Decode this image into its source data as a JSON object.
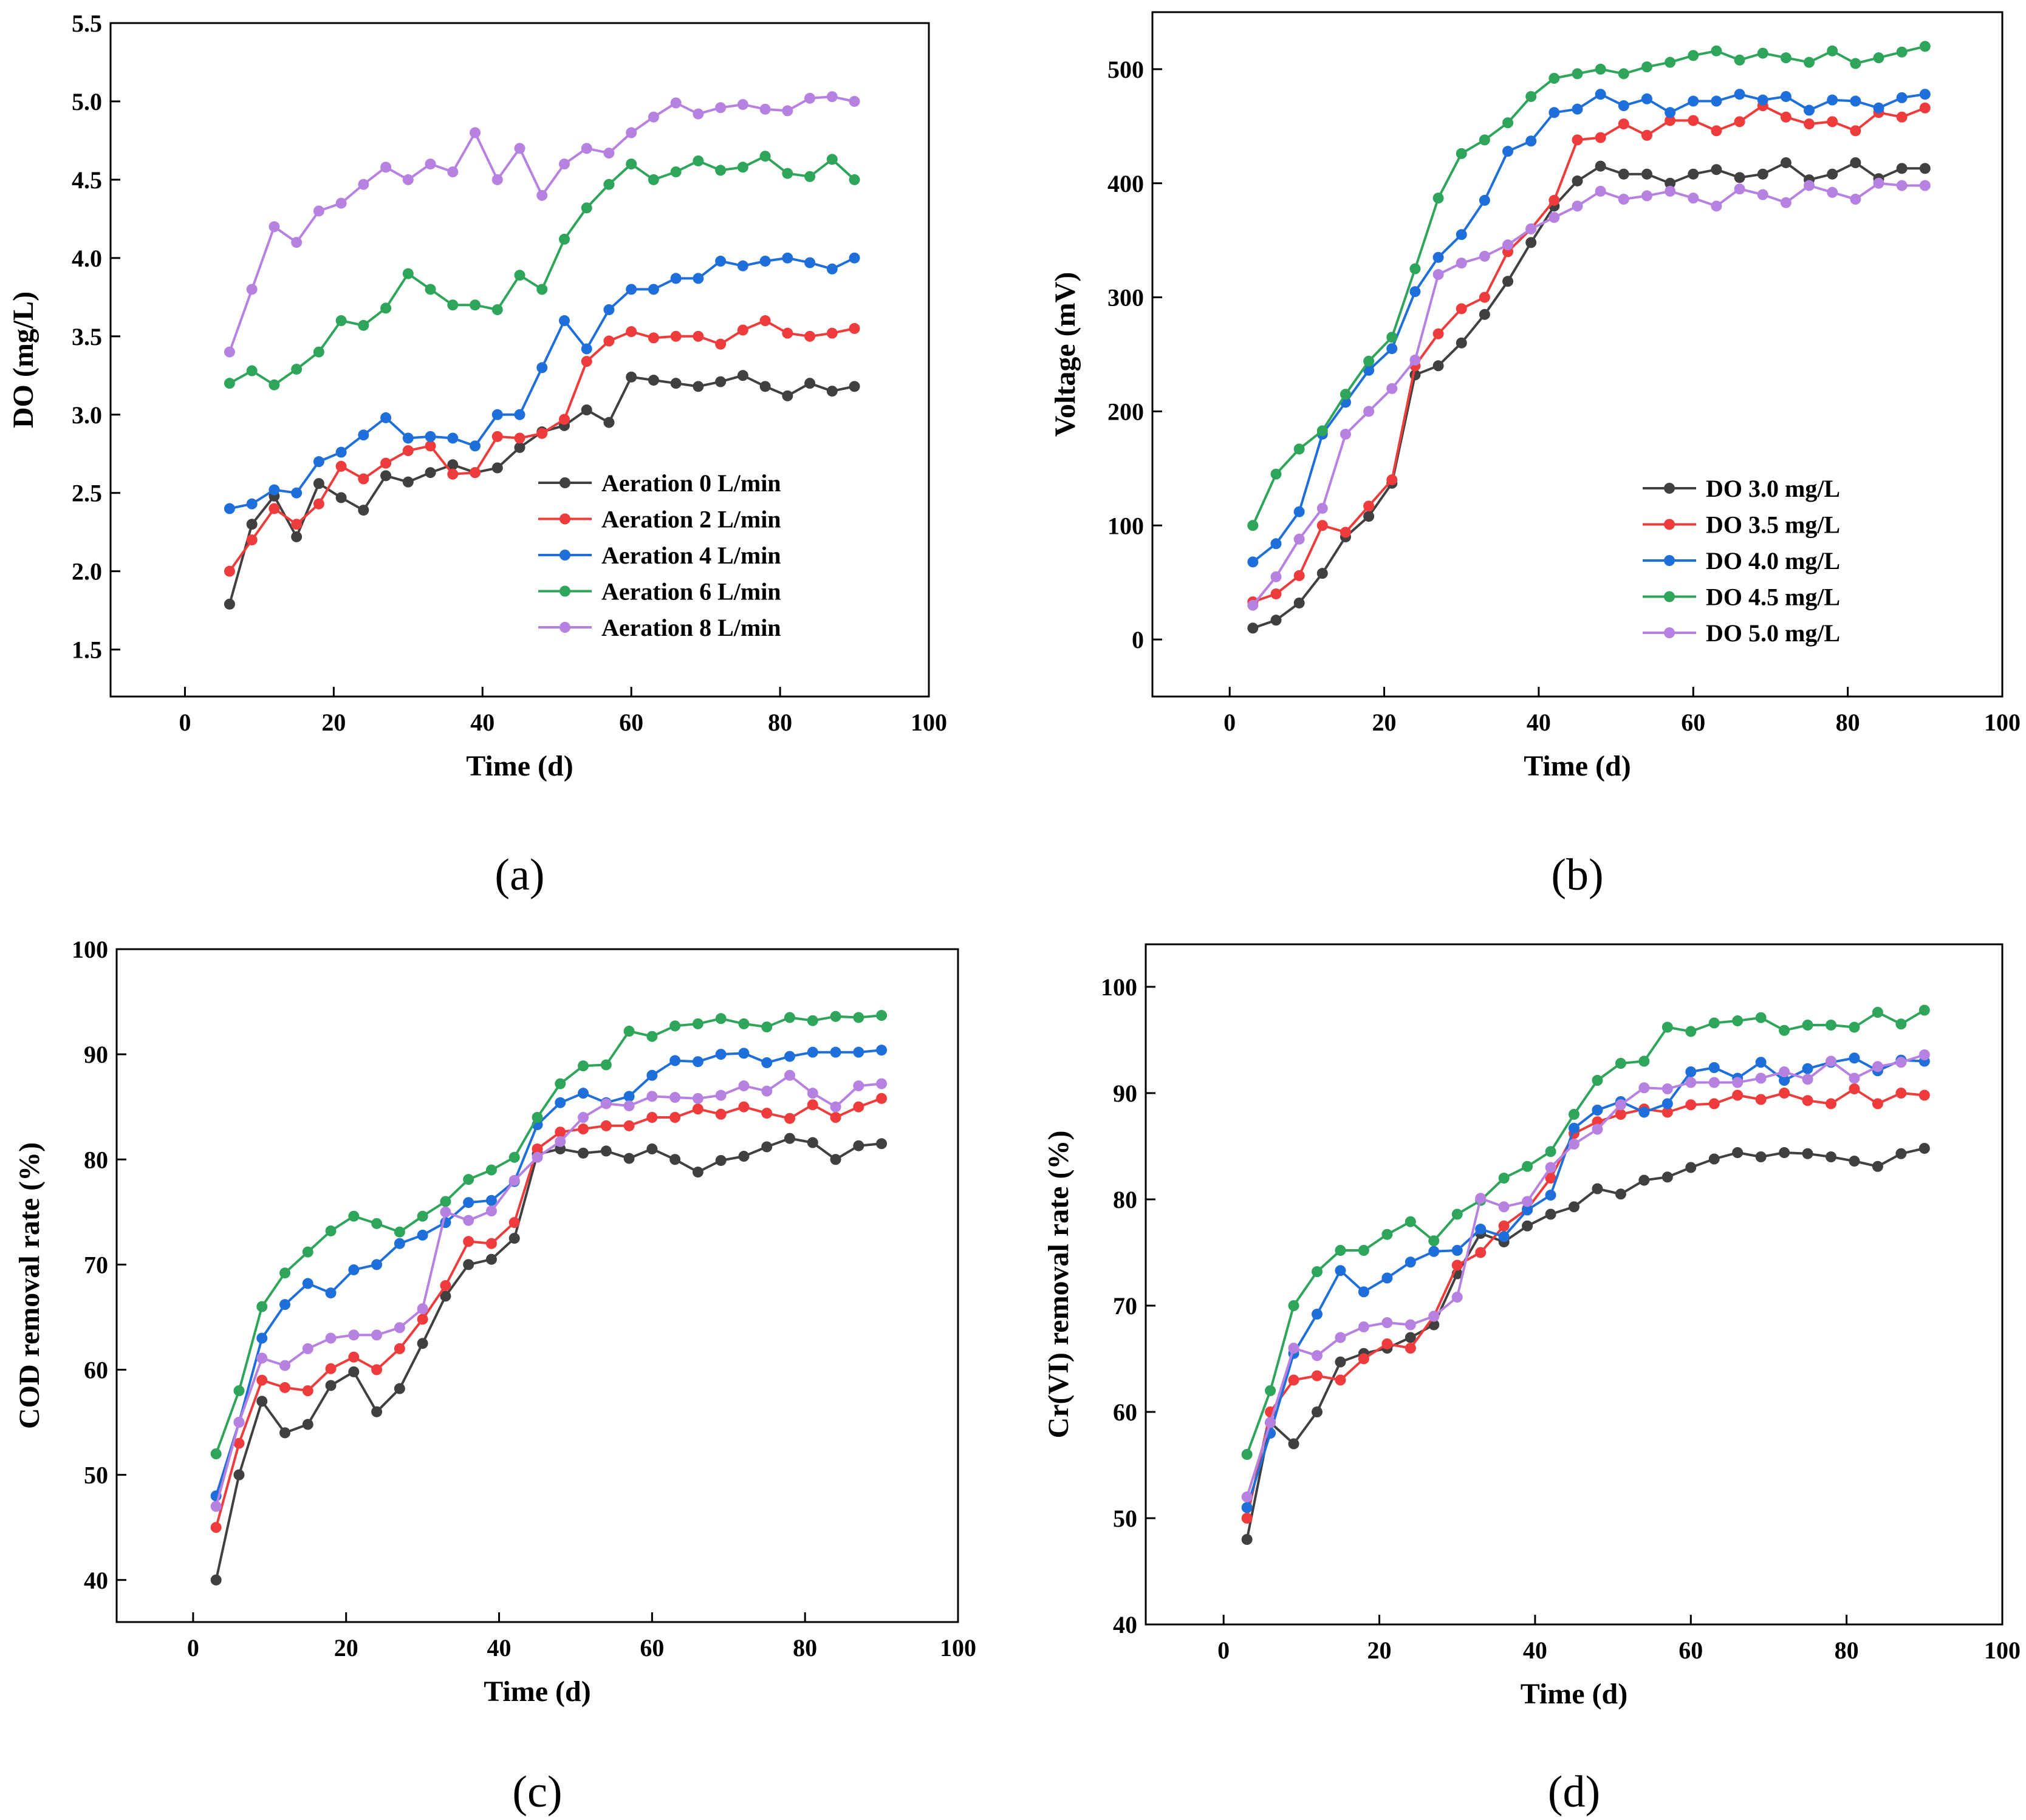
{
  "chart_data": [
    {
      "type": "line",
      "panel_label": "(a)",
      "xlabel": "Time (d)",
      "ylabel": "DO (mg/L)",
      "xlim": [
        -10,
        100
      ],
      "ylim": [
        1.2,
        5.5
      ],
      "xticks": [
        0,
        20,
        40,
        60,
        80,
        100
      ],
      "xtick_labels": [
        "0",
        "20",
        "40",
        "60",
        "80",
        "100"
      ],
      "yticks": [
        1.5,
        2.0,
        2.5,
        3.0,
        3.5,
        4.0,
        4.5,
        5.0,
        5.5
      ],
      "ytick_labels": [
        "1.5",
        "2.0",
        "2.5",
        "3.0",
        "3.5",
        "4.0",
        "4.5",
        "5.0",
        "5.5"
      ],
      "grid": false,
      "legend_position": "lower-right",
      "x": [
        6,
        9,
        12,
        15,
        18,
        21,
        24,
        27,
        30,
        33,
        36,
        39,
        42,
        45,
        48,
        51,
        54,
        57,
        60,
        63,
        66,
        69,
        72,
        75,
        78,
        81,
        84,
        87,
        90
      ],
      "series": [
        {
          "name": "Aeration 0 L/min",
          "color": "#404040",
          "values": [
            1.79,
            2.3,
            2.48,
            2.22,
            2.56,
            2.47,
            2.39,
            2.61,
            2.57,
            2.63,
            2.68,
            2.63,
            2.66,
            2.79,
            2.89,
            2.93,
            3.03,
            2.95,
            3.24,
            3.22,
            3.2,
            3.18,
            3.21,
            3.25,
            3.18,
            3.12,
            3.2,
            3.15,
            3.18
          ]
        },
        {
          "name": "Aeration 2 L/min",
          "color": "#ee3b3b",
          "values": [
            2.0,
            2.2,
            2.4,
            2.3,
            2.43,
            2.67,
            2.59,
            2.69,
            2.77,
            2.8,
            2.62,
            2.63,
            2.86,
            2.85,
            2.88,
            2.97,
            3.34,
            3.47,
            3.53,
            3.49,
            3.5,
            3.5,
            3.45,
            3.54,
            3.6,
            3.52,
            3.5,
            3.52,
            3.55
          ]
        },
        {
          "name": "Aeration 4 L/min",
          "color": "#1e6fd9",
          "values": [
            2.4,
            2.43,
            2.52,
            2.5,
            2.7,
            2.76,
            2.87,
            2.98,
            2.85,
            2.86,
            2.85,
            2.8,
            3.0,
            3.0,
            3.3,
            3.6,
            3.42,
            3.67,
            3.8,
            3.8,
            3.87,
            3.87,
            3.98,
            3.95,
            3.98,
            4.0,
            3.97,
            3.93,
            4.0
          ]
        },
        {
          "name": "Aeration 6 L/min",
          "color": "#2ea55a",
          "values": [
            3.2,
            3.28,
            3.19,
            3.29,
            3.4,
            3.6,
            3.57,
            3.68,
            3.9,
            3.8,
            3.7,
            3.7,
            3.67,
            3.89,
            3.8,
            4.12,
            4.32,
            4.47,
            4.6,
            4.5,
            4.55,
            4.62,
            4.56,
            4.58,
            4.65,
            4.54,
            4.52,
            4.63,
            4.5
          ]
        },
        {
          "name": "Aeration 8 L/min",
          "color": "#b681e0",
          "values": [
            3.4,
            3.8,
            4.2,
            4.1,
            4.3,
            4.35,
            4.47,
            4.58,
            4.5,
            4.6,
            4.55,
            4.8,
            4.5,
            4.7,
            4.4,
            4.6,
            4.7,
            4.67,
            4.8,
            4.9,
            4.99,
            4.92,
            4.96,
            4.98,
            4.95,
            4.94,
            5.02,
            5.03,
            5.0
          ]
        }
      ]
    },
    {
      "type": "line",
      "panel_label": "(b)",
      "xlabel": "Time (d)",
      "ylabel": "Voltage (mV)",
      "xlim": [
        -10,
        100
      ],
      "ylim": [
        -50,
        550
      ],
      "xticks": [
        0,
        20,
        40,
        60,
        80,
        100
      ],
      "xtick_labels": [
        "0",
        "20",
        "40",
        "60",
        "80",
        "100"
      ],
      "yticks": [
        0,
        100,
        200,
        300,
        400,
        500
      ],
      "ytick_labels": [
        "0",
        "100",
        "200",
        "300",
        "400",
        "500"
      ],
      "grid": false,
      "legend_position": "lower-right",
      "x": [
        3,
        6,
        9,
        12,
        15,
        18,
        21,
        24,
        27,
        30,
        33,
        36,
        39,
        42,
        45,
        48,
        51,
        54,
        57,
        60,
        63,
        66,
        69,
        72,
        75,
        78,
        81,
        84,
        87,
        90
      ],
      "series": [
        {
          "name": "DO 3.0 mg/L",
          "color": "#404040",
          "values": [
            10,
            17,
            32,
            58,
            90,
            108,
            137,
            232,
            240,
            260,
            285,
            314,
            348,
            380,
            402,
            415,
            408,
            408,
            400,
            408,
            412,
            405,
            408,
            418,
            403,
            408,
            418,
            404,
            413,
            413
          ]
        },
        {
          "name": "DO 3.5 mg/L",
          "color": "#ee3b3b",
          "values": [
            33,
            40,
            56,
            100,
            94,
            117,
            140,
            240,
            268,
            290,
            300,
            340,
            360,
            385,
            438,
            440,
            452,
            442,
            455,
            455,
            446,
            454,
            468,
            458,
            452,
            454,
            446,
            462,
            458,
            466
          ]
        },
        {
          "name": "DO 4.0 mg/L",
          "color": "#1e6fd9",
          "values": [
            68,
            84,
            112,
            180,
            208,
            236,
            255,
            305,
            335,
            355,
            385,
            428,
            437,
            462,
            465,
            478,
            468,
            474,
            462,
            472,
            472,
            478,
            473,
            476,
            464,
            473,
            472,
            466,
            475,
            478
          ]
        },
        {
          "name": "DO 4.5 mg/L",
          "color": "#2ea55a",
          "values": [
            100,
            145,
            167,
            183,
            215,
            244,
            265,
            325,
            387,
            426,
            438,
            453,
            476,
            492,
            496,
            500,
            496,
            502,
            506,
            512,
            516,
            508,
            514,
            510,
            506,
            516,
            505,
            510,
            515,
            520
          ]
        },
        {
          "name": "DO 5.0 mg/L",
          "color": "#b681e0",
          "values": [
            30,
            55,
            88,
            115,
            180,
            200,
            220,
            245,
            320,
            330,
            336,
            346,
            360,
            370,
            380,
            393,
            386,
            389,
            393,
            387,
            380,
            395,
            390,
            383,
            398,
            392,
            386,
            400,
            398,
            398
          ]
        }
      ]
    },
    {
      "type": "line",
      "panel_label": "(c)",
      "xlabel": "Time (d)",
      "ylabel": "COD removal rate (%)",
      "xlim": [
        -10,
        100
      ],
      "ylim": [
        36,
        100
      ],
      "xticks": [
        0,
        20,
        40,
        60,
        80,
        100
      ],
      "xtick_labels": [
        "0",
        "20",
        "40",
        "60",
        "80",
        "100"
      ],
      "yticks": [
        40,
        50,
        60,
        70,
        80,
        90,
        100
      ],
      "ytick_labels": [
        "40",
        "50",
        "60",
        "70",
        "80",
        "90",
        "100"
      ],
      "grid": false,
      "legend_position": "none",
      "x": [
        3,
        6,
        9,
        12,
        15,
        18,
        21,
        24,
        27,
        30,
        33,
        36,
        39,
        42,
        45,
        48,
        51,
        54,
        57,
        60,
        63,
        66,
        69,
        72,
        75,
        78,
        81,
        84,
        87,
        90
      ],
      "series": [
        {
          "name": "Aeration 0 L/min",
          "color": "#404040",
          "values": [
            40,
            50,
            57,
            54,
            54.8,
            58.5,
            59.8,
            56,
            58.2,
            62.5,
            67,
            70,
            70.5,
            72.5,
            80.5,
            81,
            80.6,
            80.8,
            80.1,
            81,
            80,
            78.8,
            79.9,
            80.3,
            81.2,
            82,
            81.6,
            80,
            81.3,
            81.5
          ]
        },
        {
          "name": "Aeration 2 L/min",
          "color": "#ee3b3b",
          "values": [
            45,
            53,
            59,
            58.3,
            58,
            60.1,
            61.2,
            60,
            62,
            64.8,
            68,
            72.2,
            72,
            74,
            81,
            82.6,
            82.9,
            83.2,
            83.2,
            84,
            84,
            84.8,
            84.3,
            85,
            84.4,
            83.9,
            85.2,
            84,
            85,
            85.8
          ]
        },
        {
          "name": "Aeration 4 L/min",
          "color": "#1e6fd9",
          "values": [
            48,
            55,
            63,
            66.2,
            68.2,
            67.3,
            69.5,
            70,
            72,
            72.8,
            74,
            75.9,
            76.1,
            77.9,
            83.3,
            85.4,
            86.3,
            85.4,
            86,
            88,
            89.4,
            89.3,
            90,
            90.1,
            89.2,
            89.8,
            90.2,
            90.2,
            90.2,
            90.4
          ]
        },
        {
          "name": "Aeration 6 L/min",
          "color": "#2ea55a",
          "values": [
            52,
            58,
            66,
            69.2,
            71.2,
            73.2,
            74.6,
            73.9,
            73.1,
            74.6,
            76,
            78.1,
            79,
            80.2,
            84,
            87.2,
            88.9,
            89,
            92.2,
            91.7,
            92.7,
            92.9,
            93.4,
            92.9,
            92.6,
            93.5,
            93.2,
            93.6,
            93.5,
            93.7
          ]
        },
        {
          "name": "Aeration 8 L/min",
          "color": "#b681e0",
          "values": [
            47,
            55,
            61.1,
            60.4,
            62,
            63,
            63.3,
            63.3,
            64,
            65.8,
            75,
            74.2,
            75.1,
            78,
            80.2,
            81.7,
            84,
            85.3,
            85.1,
            86,
            85.9,
            85.8,
            86.1,
            87,
            86.5,
            88,
            86.3,
            85,
            87,
            87.2
          ]
        }
      ]
    },
    {
      "type": "line",
      "panel_label": "(d)",
      "xlabel": "Time (d)",
      "ylabel": "Cr(VI) removal rate (%)",
      "xlim": [
        -10,
        100
      ],
      "ylim": [
        40,
        104
      ],
      "xticks": [
        0,
        20,
        40,
        60,
        80,
        100
      ],
      "xtick_labels": [
        "0",
        "20",
        "40",
        "60",
        "80",
        "100"
      ],
      "yticks": [
        40,
        50,
        60,
        70,
        80,
        90,
        100
      ],
      "ytick_labels": [
        "40",
        "50",
        "60",
        "70",
        "80",
        "90",
        "100"
      ],
      "grid": false,
      "legend_position": "none",
      "x": [
        3,
        6,
        9,
        12,
        15,
        18,
        21,
        24,
        27,
        30,
        33,
        36,
        39,
        42,
        45,
        48,
        51,
        54,
        57,
        60,
        63,
        66,
        69,
        72,
        75,
        78,
        81,
        84,
        87,
        90
      ],
      "series": [
        {
          "name": "DO 3.0 mg/L",
          "color": "#404040",
          "values": [
            48,
            59,
            57,
            60,
            64.7,
            65.5,
            66,
            67,
            68.2,
            73,
            76.8,
            76,
            77.5,
            78.6,
            79.3,
            81,
            80.5,
            81.8,
            82.1,
            83,
            83.8,
            84.4,
            84,
            84.4,
            84.3,
            84,
            83.6,
            83.1,
            84.3,
            84.8
          ]
        },
        {
          "name": "DO 3.5 mg/L",
          "color": "#ee3b3b",
          "values": [
            50,
            60,
            63,
            63.4,
            63,
            65,
            66.4,
            66,
            69,
            73.8,
            75,
            77.5,
            79.1,
            82,
            86.2,
            87.3,
            88,
            88.5,
            88.2,
            88.9,
            89,
            89.8,
            89.4,
            90,
            89.3,
            89,
            90.4,
            89,
            90,
            89.8
          ]
        },
        {
          "name": "DO 4.0 mg/L",
          "color": "#1e6fd9",
          "values": [
            51,
            58,
            65.5,
            69.2,
            73.3,
            71.3,
            72.6,
            74.1,
            75.1,
            75.2,
            77.2,
            76.5,
            79,
            80.4,
            86.7,
            88.4,
            89.2,
            88.2,
            89,
            92,
            92.4,
            91.4,
            92.9,
            91.2,
            92.3,
            92.9,
            93.3,
            92.1,
            93.1,
            93
          ]
        },
        {
          "name": "DO 4.5 mg/L",
          "color": "#2ea55a",
          "values": [
            56,
            62,
            70,
            73.2,
            75.2,
            75.2,
            76.7,
            77.9,
            76.1,
            78.6,
            79.9,
            82,
            83.1,
            84.5,
            88,
            91.2,
            92.8,
            93,
            96.2,
            95.8,
            96.6,
            96.8,
            97.1,
            95.9,
            96.4,
            96.4,
            96.2,
            97.6,
            96.5,
            97.8
          ]
        },
        {
          "name": "DO 5.0 mg/L",
          "color": "#b681e0",
          "values": [
            52,
            59,
            66,
            65.3,
            67,
            68,
            68.4,
            68.2,
            69,
            70.8,
            80.1,
            79.3,
            79.8,
            83,
            85.2,
            86.6,
            88.9,
            90.5,
            90.4,
            91,
            91,
            91,
            91.4,
            92,
            91.3,
            93,
            91.4,
            92.5,
            92.9,
            93.6
          ]
        }
      ]
    }
  ]
}
